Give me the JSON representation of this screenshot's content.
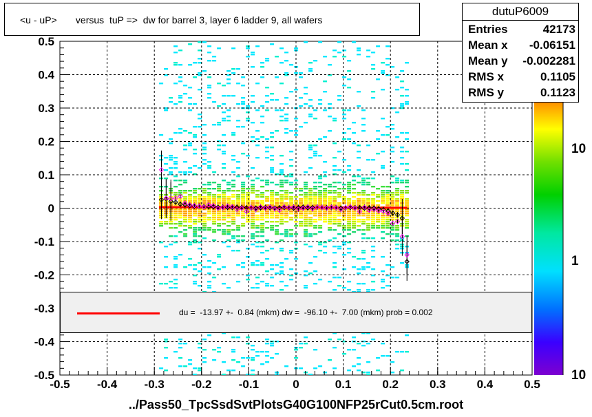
{
  "title": "<u - uP>       versus  tuP =>  dw for barrel 3, layer 6 ladder 9, all wafers",
  "stats": {
    "name": "dutuP6009",
    "rows": [
      {
        "label": "Entries",
        "value": "42173"
      },
      {
        "label": "Mean x",
        "value": "-0.06151"
      },
      {
        "label": "Mean y",
        "value": "-0.002281"
      },
      {
        "label": "RMS x",
        "value": "0.1105"
      },
      {
        "label": "RMS y",
        "value": "0.1123"
      }
    ]
  },
  "legend": {
    "text": "du =  -13.97 +-  0.84 (mkm) dw =  -96.10 +-  7.00 (mkm) prob = 0.002",
    "line_color": "#ff0000"
  },
  "footer": "../Pass50_TpcSsdSvtPlotsG40G100NFP25rCut0.5cm.root",
  "chart_data": {
    "type": "heatmap",
    "xlim": [
      -0.5,
      0.5
    ],
    "ylim": [
      -0.5,
      0.5
    ],
    "x_ticks": [
      "-0.5",
      "-0.4",
      "-0.3",
      "-0.2",
      "-0.1",
      "0",
      "0.1",
      "0.2",
      "0.3",
      "0.4",
      "0.5"
    ],
    "y_ticks": [
      "-0.5",
      "-0.4",
      "-0.3",
      "-0.2",
      "-0.1",
      "0",
      "0.1",
      "0.2",
      "0.3",
      "0.4",
      "0.5"
    ],
    "grid": true,
    "z_scale": "log",
    "z_ticks": [
      "1",
      "10",
      "10"
    ],
    "fit_line": {
      "x": [
        -0.29,
        0.235
      ],
      "y": [
        0.003,
        0.001
      ],
      "color": "#ff0000"
    },
    "profile_black": {
      "x": [
        -0.285,
        -0.275,
        -0.265,
        -0.255,
        -0.245,
        -0.235,
        -0.225,
        -0.215,
        -0.205,
        -0.195,
        -0.185,
        -0.175,
        -0.165,
        -0.155,
        -0.145,
        -0.135,
        -0.125,
        -0.115,
        -0.105,
        -0.095,
        -0.085,
        -0.075,
        -0.065,
        -0.055,
        -0.045,
        -0.035,
        -0.025,
        -0.015,
        -0.005,
        0.005,
        0.015,
        0.025,
        0.035,
        0.045,
        0.055,
        0.065,
        0.075,
        0.085,
        0.095,
        0.105,
        0.115,
        0.125,
        0.135,
        0.145,
        0.155,
        0.165,
        0.175,
        0.185,
        0.195,
        0.205,
        0.215,
        0.225,
        0.235
      ],
      "y": [
        0.025,
        0.028,
        0.02,
        0.018,
        0.012,
        0.01,
        0.008,
        0.006,
        0.006,
        0.005,
        0.004,
        0.004,
        0.003,
        0.003,
        0.002,
        0.002,
        0.003,
        0.002,
        0.001,
        0.001,
        0.0,
        0.001,
        0.002,
        0.001,
        0.0,
        0.001,
        0.002,
        0.001,
        0.0,
        0.002,
        0.003,
        0.001,
        0.002,
        0.003,
        0.002,
        0.001,
        0.002,
        0.001,
        0.0,
        0.001,
        0.002,
        0.001,
        0.001,
        0.0,
        0.001,
        0.0,
        -0.002,
        -0.004,
        -0.008,
        -0.015,
        -0.02,
        -0.03,
        -0.16
      ]
    },
    "profile_magenta": {
      "x": [
        -0.285,
        -0.275,
        -0.265,
        -0.255,
        -0.245,
        -0.235,
        -0.225,
        -0.215,
        -0.205,
        -0.195,
        -0.185,
        -0.175,
        -0.165,
        -0.155,
        -0.145,
        -0.135,
        -0.125,
        -0.115,
        -0.105,
        -0.095,
        -0.085,
        -0.075,
        -0.065,
        -0.055,
        -0.045,
        -0.035,
        -0.025,
        -0.015,
        -0.005,
        0.005,
        0.015,
        0.025,
        0.035,
        0.045,
        0.055,
        0.065,
        0.075,
        0.085,
        0.095,
        0.105,
        0.115,
        0.125,
        0.135,
        0.145,
        0.155,
        0.165,
        0.175,
        0.185,
        0.195,
        0.205,
        0.215,
        0.225,
        0.235
      ],
      "y": [
        0.115,
        0.03,
        0.028,
        0.03,
        0.035,
        0.015,
        0.01,
        0.008,
        0.006,
        0.004,
        0.01,
        0.008,
        0.0,
        0.002,
        0.006,
        0.004,
        -0.004,
        0.0,
        -0.01,
        0.002,
        -0.004,
        0.004,
        0.0,
        0.003,
        -0.002,
        -0.006,
        0.004,
        0.002,
        0.003,
        -0.003,
        0.0,
        0.004,
        -0.002,
        0.003,
        0.002,
        0.0,
        0.003,
        0.001,
        -0.004,
        0.002,
        0.004,
        0.0,
        -0.01,
        0.003,
        -0.006,
        -0.004,
        -0.008,
        -0.01,
        -0.015,
        -0.045,
        -0.04,
        -0.085,
        -0.14
      ]
    }
  }
}
